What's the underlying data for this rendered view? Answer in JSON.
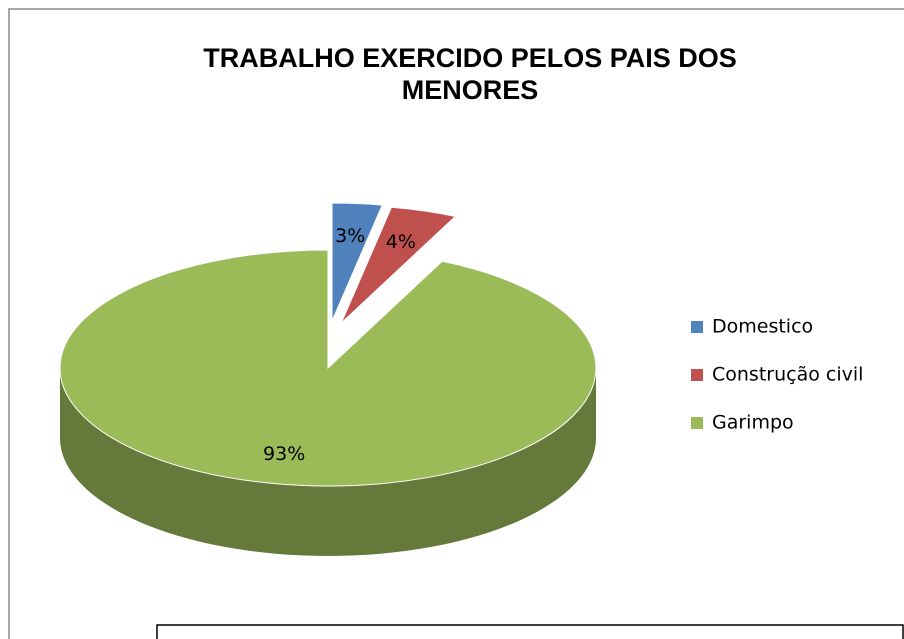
{
  "chart_data": {
    "type": "pie",
    "title": "TRABALHO EXERCIDO PELOS PAIS DOS MENORES",
    "categories": [
      "Domestico",
      "Construção civil",
      "Garimpo"
    ],
    "values": [
      3,
      4,
      93
    ],
    "value_labels": [
      "3%",
      "4%",
      "93%"
    ],
    "colors": [
      "#4f81bd",
      "#c0504d",
      "#9bbb59"
    ],
    "legend": "right"
  }
}
